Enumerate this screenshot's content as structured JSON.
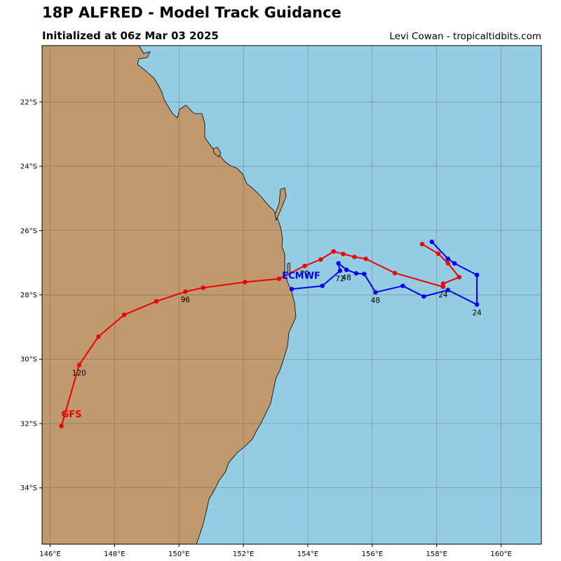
{
  "header": {
    "title": "18P ALFRED - Model Track Guidance",
    "subtitle": "Initialized at 06z Mar 03 2025",
    "credit": "Levi Cowan - tropicaltidbits.com"
  },
  "colors": {
    "ocean": "#94cde3",
    "land": "#c09a6e",
    "gfs": "#ee0000",
    "ecmwf": "#0000ee",
    "grid": "#555555"
  },
  "axes": {
    "lon_range": [
      145.75,
      161.25
    ],
    "lat_range": [
      -35.75,
      -20.25
    ],
    "x_ticks": [
      {
        "value": 146,
        "label": "146°E"
      },
      {
        "value": 148,
        "label": "148°E"
      },
      {
        "value": 150,
        "label": "150°E"
      },
      {
        "value": 152,
        "label": "152°E"
      },
      {
        "value": 154,
        "label": "154°E"
      },
      {
        "value": 156,
        "label": "156°E"
      },
      {
        "value": 158,
        "label": "158°E"
      },
      {
        "value": 160,
        "label": "160°E"
      }
    ],
    "y_ticks": [
      {
        "value": -22,
        "label": "22°S"
      },
      {
        "value": -24,
        "label": "24°S"
      },
      {
        "value": -26,
        "label": "26°S"
      },
      {
        "value": -28,
        "label": "28°S"
      },
      {
        "value": -30,
        "label": "30°S"
      },
      {
        "value": -32,
        "label": "32°S"
      },
      {
        "value": -34,
        "label": "34°S"
      }
    ],
    "grid": true
  },
  "models": [
    {
      "name": "GFS",
      "color": "#ee0000",
      "label_at": [
        146.35,
        -31.8
      ],
      "points": [
        [
          157.55,
          -26.42
        ],
        [
          158.05,
          -26.72
        ],
        [
          158.35,
          -27.02
        ],
        [
          158.7,
          -27.45
        ],
        [
          158.2,
          -27.65
        ],
        [
          158.2,
          -27.75
        ],
        [
          156.7,
          -27.32
        ],
        [
          155.8,
          -26.88
        ],
        [
          155.45,
          -26.82
        ],
        [
          155.1,
          -26.73
        ],
        [
          154.8,
          -26.65
        ],
        [
          154.4,
          -26.9
        ],
        [
          153.9,
          -27.1
        ],
        [
          153.1,
          -27.5
        ],
        [
          152.05,
          -27.6
        ],
        [
          150.75,
          -27.78
        ],
        [
          150.2,
          -27.9
        ],
        [
          149.3,
          -28.2
        ],
        [
          148.3,
          -28.62
        ],
        [
          147.5,
          -29.3
        ],
        [
          146.9,
          -30.18
        ],
        [
          146.35,
          -32.08
        ]
      ],
      "labels": [
        {
          "text": "24",
          "at": [
            158.2,
            -27.75
          ]
        },
        {
          "text": "72",
          "at": [
            153.9,
            -27.1
          ]
        },
        {
          "text": "96",
          "at": [
            150.2,
            -27.9
          ]
        },
        {
          "text": "120",
          "at": [
            146.9,
            -30.18
          ]
        }
      ]
    },
    {
      "name": "ECMWF",
      "color": "#0000ee",
      "label_at": [
        153.2,
        -27.5
      ],
      "points": [
        [
          157.85,
          -26.35
        ],
        [
          158.35,
          -26.88
        ],
        [
          158.55,
          -27.02
        ],
        [
          159.25,
          -27.38
        ],
        [
          159.25,
          -28.3
        ],
        [
          158.35,
          -27.85
        ],
        [
          157.6,
          -28.05
        ],
        [
          156.95,
          -27.72
        ],
        [
          156.1,
          -27.92
        ],
        [
          155.75,
          -27.35
        ],
        [
          155.5,
          -27.33
        ],
        [
          155.2,
          -27.22
        ],
        [
          154.95,
          -27.02
        ],
        [
          155.0,
          -27.25
        ],
        [
          154.45,
          -27.72
        ],
        [
          153.5,
          -27.82
        ]
      ],
      "labels": [
        {
          "text": "24",
          "at": [
            159.25,
            -28.3
          ]
        },
        {
          "text": "48",
          "at": [
            156.1,
            -27.92
          ]
        },
        {
          "text": "48",
          "at": [
            155.2,
            -27.22
          ]
        },
        {
          "text": "72",
          "at": [
            155.0,
            -27.25
          ]
        }
      ]
    }
  ]
}
